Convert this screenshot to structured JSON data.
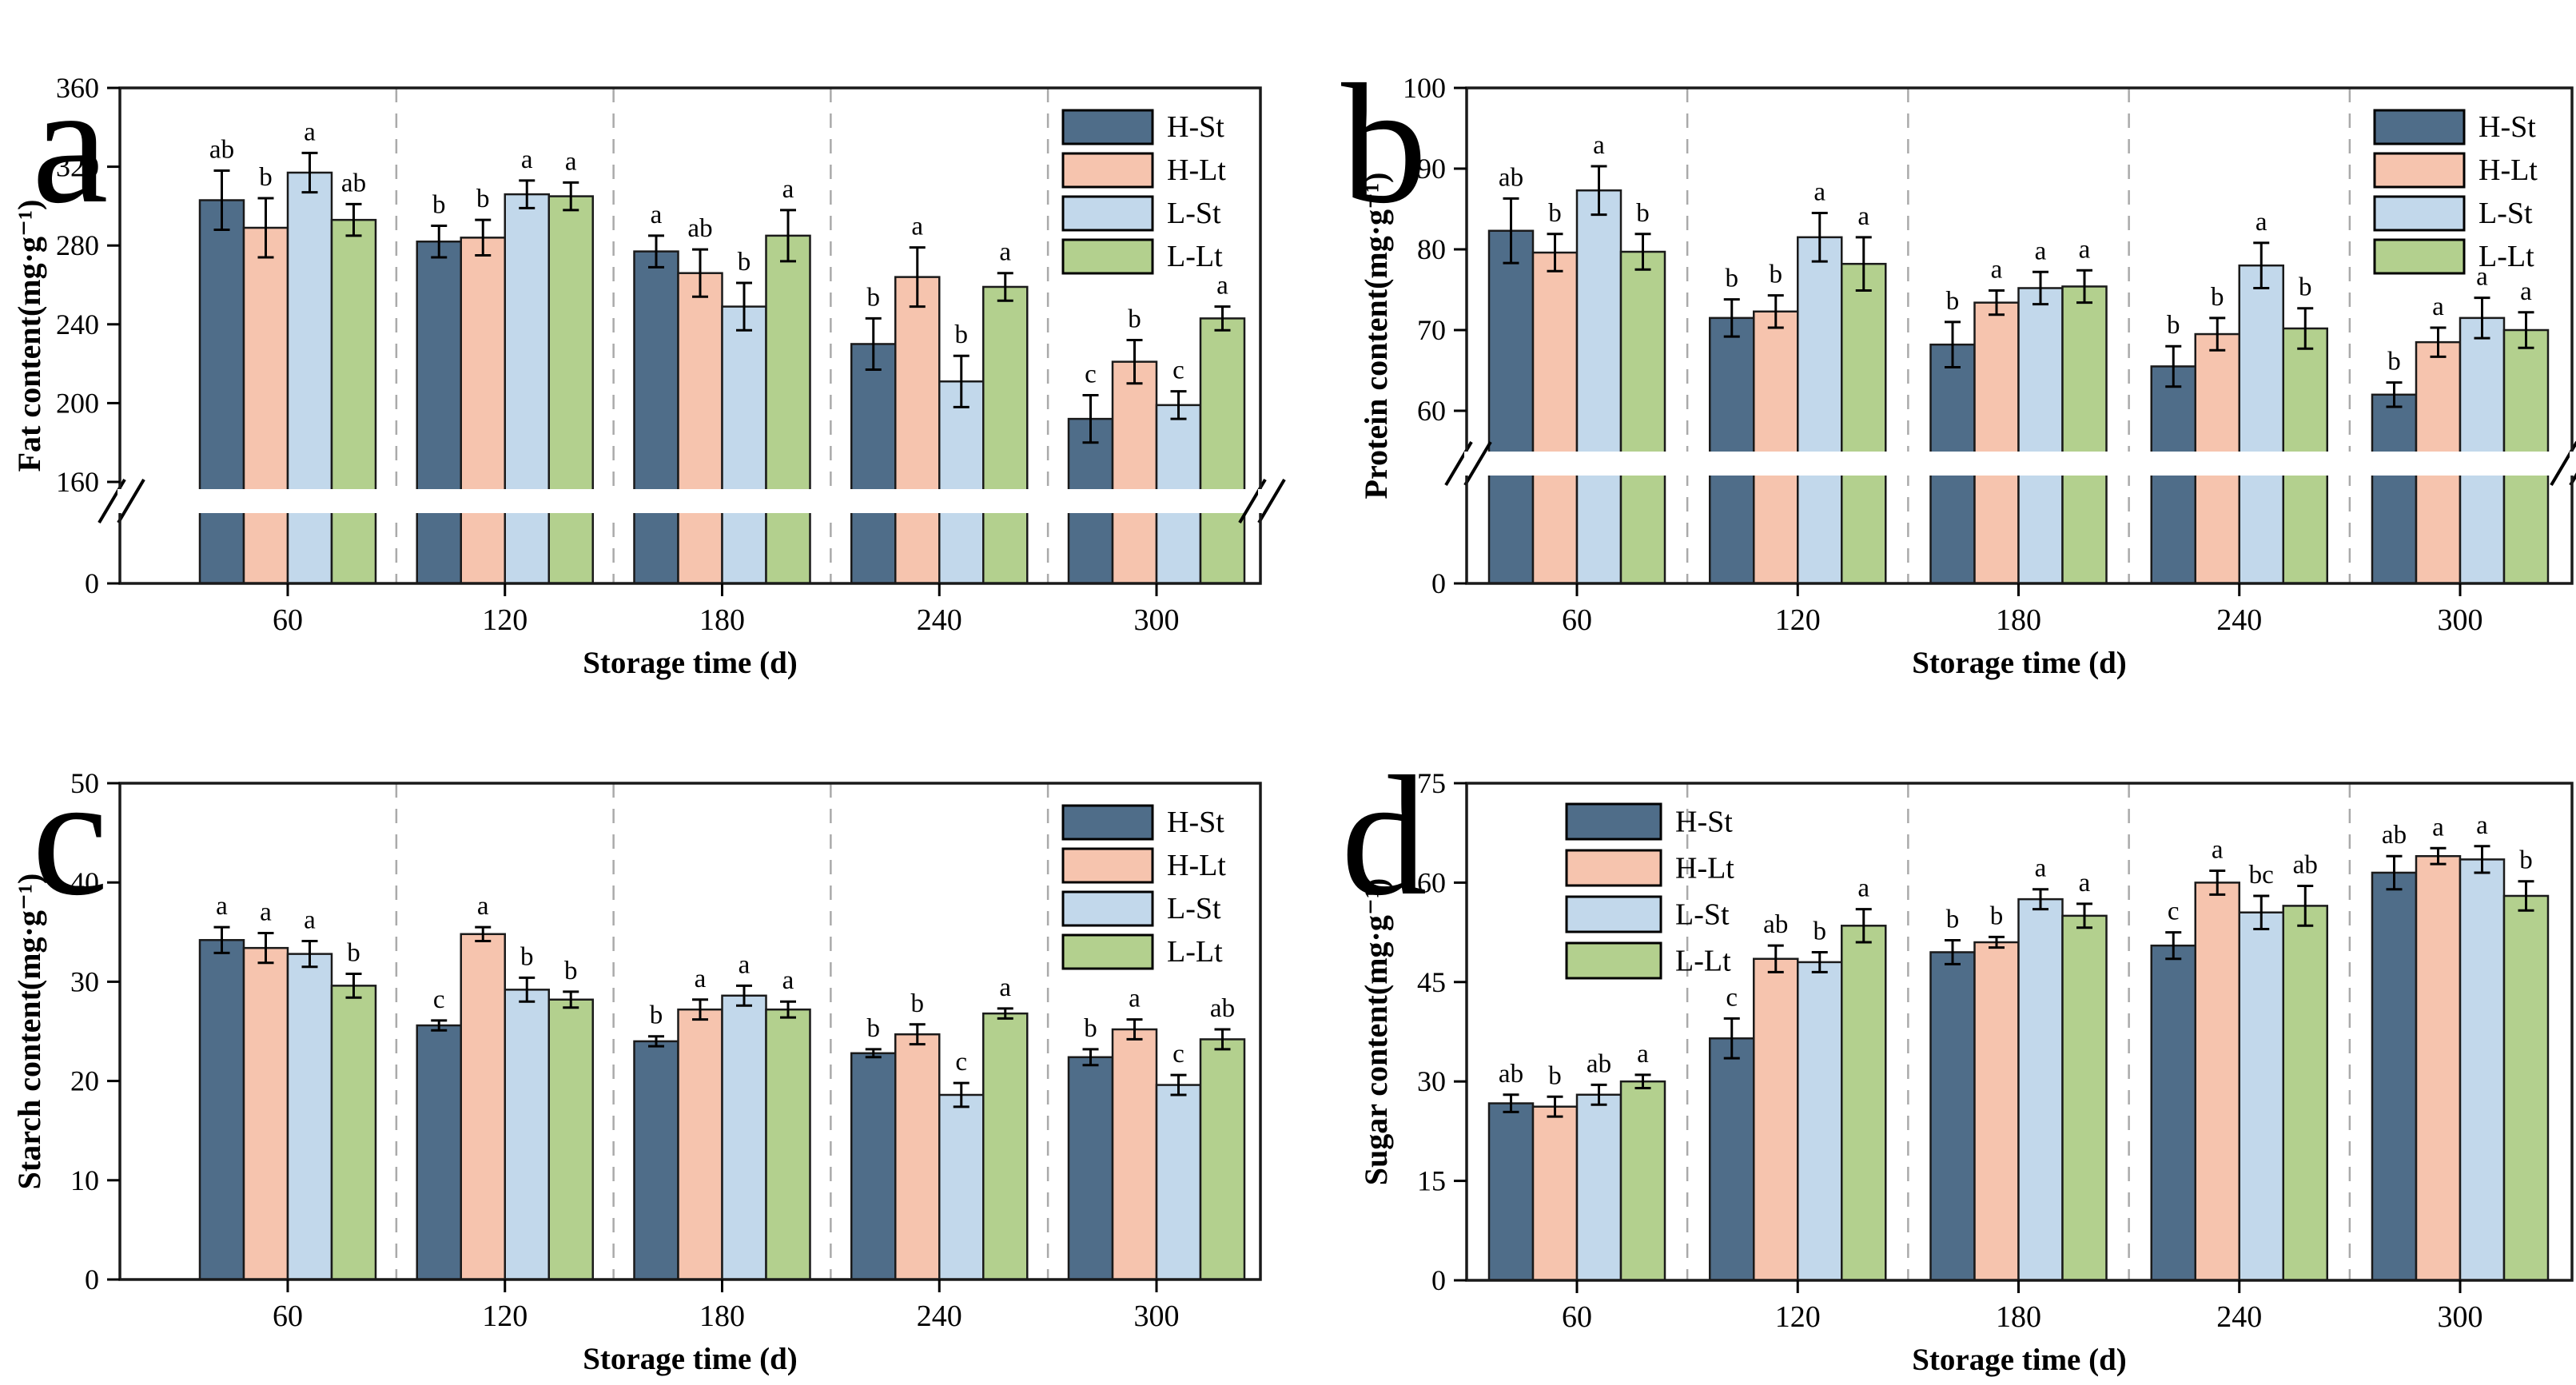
{
  "figure": {
    "xlabel": "Storage time (d)",
    "storage_times": [
      "60",
      "120",
      "180",
      "240",
      "300"
    ],
    "treatments": [
      "H-St",
      "H-Lt",
      "L-St",
      "L-Lt"
    ],
    "colors": {
      "H-St": "#4f6d89",
      "H-Lt": "#f6c4ae",
      "L-St": "#c2d8eb",
      "L-Lt": "#b3d08e",
      "bar_outline": "#1a1a1a",
      "separator": "#aaaaaa"
    }
  },
  "chart_data": [
    {
      "type": "grouped_bar",
      "panel_label": "a",
      "ylabel": "Fat content(mg·g⁻¹)",
      "xlabel": "Storage time (d)",
      "categories": [
        "60",
        "120",
        "180",
        "240",
        "300"
      ],
      "yticks": [
        0,
        160,
        200,
        240,
        280,
        320,
        360
      ],
      "ylim": [
        0,
        360
      ],
      "grid": false,
      "axis_break": {
        "enabled": true,
        "hidden_range": [
          0,
          155
        ]
      },
      "legend_position": "top-right",
      "legend_entries": [
        "H-St",
        "H-Lt",
        "L-St",
        "L-Lt"
      ],
      "series": [
        {
          "name": "H-St",
          "color": "#4f6d89",
          "values": [
            303,
            282,
            277,
            230,
            192
          ],
          "errors": [
            15,
            8,
            8,
            13,
            12
          ],
          "sig_letters": [
            "ab",
            "b",
            "a",
            "b",
            "c"
          ]
        },
        {
          "name": "H-Lt",
          "color": "#f6c4ae",
          "values": [
            289,
            284,
            266,
            264,
            221
          ],
          "errors": [
            15,
            9,
            12,
            15,
            11
          ],
          "sig_letters": [
            "b",
            "b",
            "ab",
            "a",
            "b"
          ]
        },
        {
          "name": "L-St",
          "color": "#c2d8eb",
          "values": [
            317,
            306,
            249,
            211,
            199
          ],
          "errors": [
            10,
            7,
            12,
            13,
            7
          ],
          "sig_letters": [
            "a",
            "a",
            "b",
            "b",
            "c"
          ]
        },
        {
          "name": "L-Lt",
          "color": "#b3d08e",
          "values": [
            293,
            305,
            285,
            259,
            243
          ],
          "errors": [
            8,
            7,
            13,
            7,
            6
          ],
          "sig_letters": [
            "ab",
            "a",
            "a",
            "a",
            "a"
          ]
        }
      ]
    },
    {
      "type": "grouped_bar",
      "panel_label": "b",
      "ylabel": "Protein content(mg·g⁻¹)",
      "xlabel": "Storage time (d)",
      "categories": [
        "60",
        "120",
        "180",
        "240",
        "300"
      ],
      "yticks": [
        0,
        60,
        70,
        80,
        90,
        100
      ],
      "ylim": [
        0,
        100
      ],
      "grid": false,
      "axis_break": {
        "enabled": true,
        "hidden_range": [
          0,
          55
        ]
      },
      "legend_position": "top-right",
      "legend_entries": [
        "H-St",
        "H-Lt",
        "L-St",
        "L-Lt"
      ],
      "series": [
        {
          "name": "H-St",
          "color": "#4f6d89",
          "values": [
            82.3,
            71.5,
            68.2,
            65.5,
            62.0
          ],
          "errors": [
            4,
            2.3,
            2.8,
            2.5,
            1.5
          ],
          "sig_letters": [
            "ab",
            "b",
            "b",
            "b",
            "b"
          ]
        },
        {
          "name": "H-Lt",
          "color": "#f6c4ae",
          "values": [
            79.6,
            72.3,
            73.4,
            69.5,
            68.5
          ],
          "errors": [
            2.3,
            2,
            1.5,
            2,
            1.8
          ],
          "sig_letters": [
            "b",
            "b",
            "a",
            "b",
            "a"
          ]
        },
        {
          "name": "L-St",
          "color": "#c2d8eb",
          "values": [
            87.3,
            81.5,
            75.2,
            78.0,
            71.5
          ],
          "errors": [
            3,
            3,
            2,
            2.8,
            2.5
          ],
          "sig_letters": [
            "a",
            "a",
            "a",
            "a",
            "a"
          ]
        },
        {
          "name": "L-Lt",
          "color": "#b3d08e",
          "values": [
            79.7,
            78.2,
            75.4,
            70.2,
            70.0
          ],
          "errors": [
            2.2,
            3.3,
            2,
            2.5,
            2.2
          ],
          "sig_letters": [
            "b",
            "a",
            "a",
            "b",
            "a"
          ]
        }
      ]
    },
    {
      "type": "grouped_bar",
      "panel_label": "c",
      "ylabel": "Starch content(mg·g⁻¹)",
      "xlabel": "Storage time (d)",
      "categories": [
        "60",
        "120",
        "180",
        "240",
        "300"
      ],
      "yticks": [
        0,
        10,
        20,
        30,
        40,
        50
      ],
      "ylim": [
        0,
        50
      ],
      "grid": false,
      "axis_break": {
        "enabled": false
      },
      "legend_position": "top-right",
      "legend_entries": [
        "H-St",
        "H-Lt",
        "L-St",
        "L-Lt"
      ],
      "series": [
        {
          "name": "H-St",
          "color": "#4f6d89",
          "values": [
            34.2,
            25.6,
            24.0,
            22.8,
            22.4
          ],
          "errors": [
            1.3,
            0.5,
            0.5,
            0.4,
            0.8
          ],
          "sig_letters": [
            "a",
            "c",
            "b",
            "b",
            "b"
          ]
        },
        {
          "name": "H-Lt",
          "color": "#f6c4ae",
          "values": [
            33.4,
            34.8,
            27.2,
            24.7,
            25.2
          ],
          "errors": [
            1.5,
            0.7,
            1,
            1,
            1
          ],
          "sig_letters": [
            "a",
            "a",
            "a",
            "b",
            "a"
          ]
        },
        {
          "name": "L-St",
          "color": "#c2d8eb",
          "values": [
            32.8,
            29.2,
            28.6,
            18.6,
            19.6
          ],
          "errors": [
            1.3,
            1.2,
            1,
            1.2,
            1
          ],
          "sig_letters": [
            "a",
            "b",
            "a",
            "c",
            "c"
          ]
        },
        {
          "name": "L-Lt",
          "color": "#b3d08e",
          "values": [
            29.6,
            28.2,
            27.2,
            26.8,
            24.2
          ],
          "errors": [
            1.2,
            0.8,
            0.8,
            0.5,
            1
          ],
          "sig_letters": [
            "b",
            "b",
            "a",
            "a",
            "ab"
          ]
        }
      ]
    },
    {
      "type": "grouped_bar",
      "panel_label": "d",
      "ylabel": "Sugar content(mg·g⁻¹)",
      "xlabel": "Storage time (d)",
      "categories": [
        "60",
        "120",
        "180",
        "240",
        "300"
      ],
      "yticks": [
        0,
        15,
        30,
        45,
        60,
        75
      ],
      "ylim": [
        0,
        75
      ],
      "grid": false,
      "axis_break": {
        "enabled": false
      },
      "legend_position": "top-left",
      "legend_entries": [
        "H-St",
        "H-Lt",
        "L-St",
        "L-Lt"
      ],
      "series": [
        {
          "name": "H-St",
          "color": "#4f6d89",
          "values": [
            26.7,
            36.5,
            49.5,
            50.5,
            61.5
          ],
          "errors": [
            1.3,
            3,
            1.8,
            2,
            2.5
          ],
          "sig_letters": [
            "ab",
            "c",
            "b",
            "c",
            "ab"
          ]
        },
        {
          "name": "H-Lt",
          "color": "#f6c4ae",
          "values": [
            26.2,
            48.5,
            51.0,
            60.0,
            64.0
          ],
          "errors": [
            1.5,
            2,
            0.8,
            1.8,
            1.2
          ],
          "sig_letters": [
            "b",
            "ab",
            "b",
            "a",
            "a"
          ]
        },
        {
          "name": "L-St",
          "color": "#c2d8eb",
          "values": [
            28.0,
            48.0,
            57.5,
            55.5,
            63.5
          ],
          "errors": [
            1.5,
            1.5,
            1.5,
            2.5,
            2
          ],
          "sig_letters": [
            "ab",
            "b",
            "a",
            "bc",
            "a"
          ]
        },
        {
          "name": "L-Lt",
          "color": "#b3d08e",
          "values": [
            30.0,
            53.5,
            55.0,
            56.5,
            58.0
          ],
          "errors": [
            1,
            2.5,
            1.8,
            3,
            2.2
          ],
          "sig_letters": [
            "a",
            "a",
            "a",
            "ab",
            "b"
          ]
        }
      ]
    }
  ]
}
